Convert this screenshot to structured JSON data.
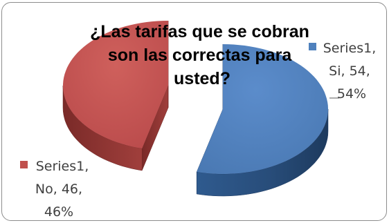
{
  "chart_data": {
    "type": "pie",
    "title_lines": [
      "¿Las tarifas que se cobran",
      "son las correctas para",
      "usted?"
    ],
    "series_name": "Series1",
    "categories": [
      "Si",
      "No"
    ],
    "values": [
      54,
      46
    ],
    "percents": [
      "54%",
      "46%"
    ],
    "colors": {
      "Si": "#4f81bd",
      "No": "#c0504d"
    },
    "style": "3d-exploded",
    "labels": [
      {
        "lines": [
          "Series1,",
          "Si, 54,",
          "54%"
        ]
      },
      {
        "lines": [
          "Series1,",
          "No, 46,",
          "46%"
        ]
      }
    ],
    "legend": "none"
  }
}
